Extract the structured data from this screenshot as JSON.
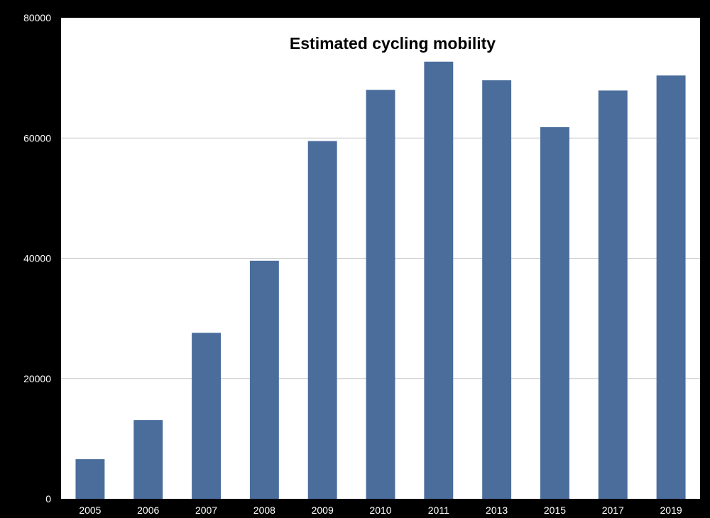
{
  "chart_data": {
    "type": "bar",
    "title": "Estimated cycling mobility",
    "xlabel": "",
    "ylabel": "",
    "categories": [
      "2005",
      "2006",
      "2007",
      "2008",
      "2009",
      "2010",
      "2011",
      "2013",
      "2015",
      "2017",
      "2019"
    ],
    "values": [
      6600,
      13100,
      27600,
      39600,
      59500,
      68000,
      72700,
      69600,
      61800,
      67900,
      70400
    ],
    "ylim": [
      0,
      80000
    ],
    "yticks": [
      "0",
      "20000",
      "40000",
      "60000",
      "80000"
    ],
    "grid": true,
    "legend": "none",
    "colors": {
      "bar": "#4a6d9c",
      "plot_background": "#ffffff",
      "page_background": "#000000",
      "gridline": "#c8c8c8",
      "tick_text": "#ffffff",
      "title_text": "#000000"
    }
  }
}
